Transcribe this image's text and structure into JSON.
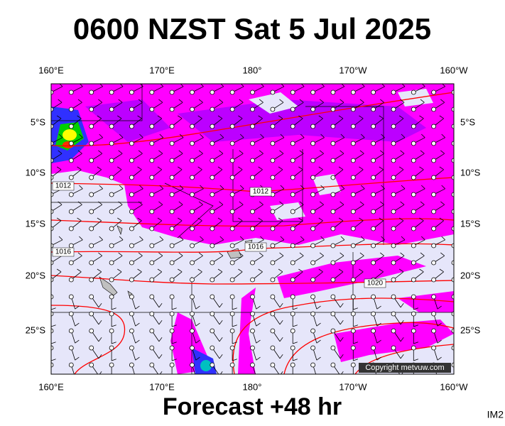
{
  "header": {
    "title": "0600 NZST Sat 5 Jul 2025"
  },
  "footer": {
    "forecast": "Forecast +48 hr",
    "image_id": "IM2"
  },
  "map": {
    "longitude_labels": [
      "160°E",
      "170°E",
      "180°",
      "170°W",
      "160°W"
    ],
    "latitude_labels": [
      "5°S",
      "10°S",
      "15°S",
      "20°S",
      "25°S"
    ],
    "isobar_labels": [
      "1012",
      "1012",
      "1016",
      "1016",
      "1020"
    ],
    "copyright": "Copyright metvuw.com"
  }
}
